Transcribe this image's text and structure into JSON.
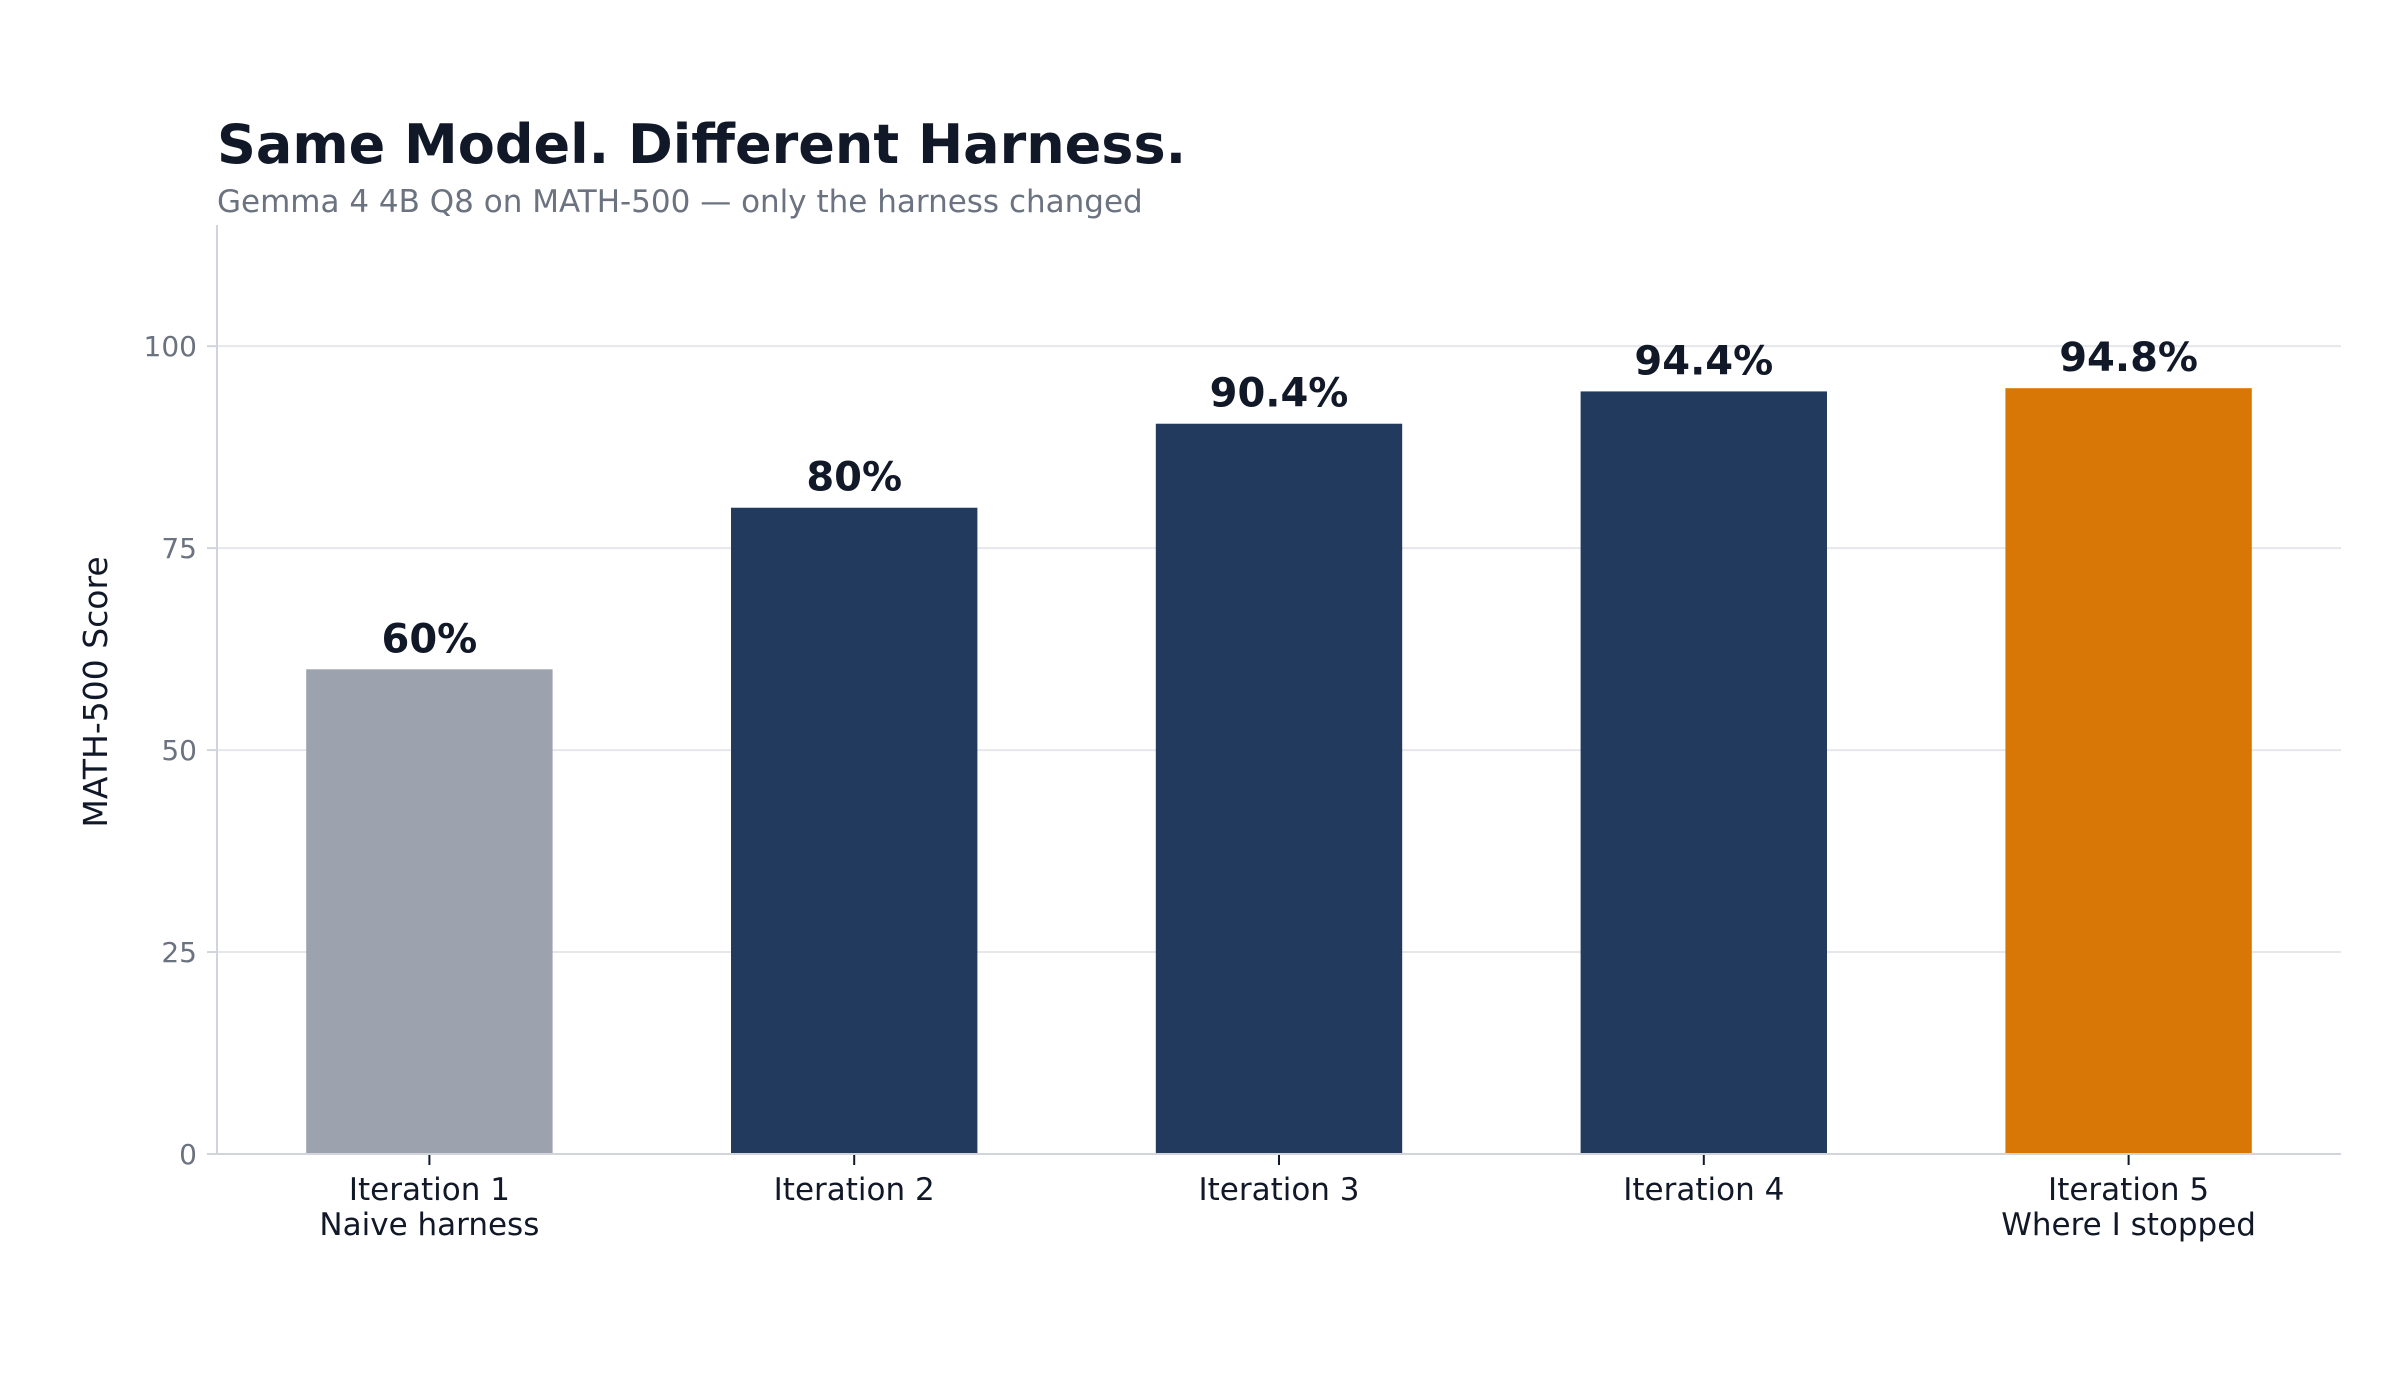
{
  "chart_data": {
    "type": "bar",
    "title": "Same Model. Different Harness.",
    "subtitle": "Gemma 4 4B Q8 on MATH-500 — only the harness changed",
    "xlabel": "",
    "ylabel": "MATH-500 Score",
    "ylim": [
      0,
      115
    ],
    "yticks": [
      0,
      25,
      50,
      75,
      100
    ],
    "grid": true,
    "categories": [
      [
        "Iteration 1",
        "Naive harness"
      ],
      [
        "Iteration 2"
      ],
      [
        "Iteration 3"
      ],
      [
        "Iteration 4"
      ],
      [
        "Iteration 5",
        "Where I stopped"
      ]
    ],
    "values": [
      60,
      80,
      90.4,
      94.4,
      94.8
    ],
    "data_labels": [
      "60%",
      "80%",
      "90.4%",
      "94.4%",
      "94.8%"
    ],
    "colors": [
      "#9ca3af",
      "#213a5e",
      "#213a5e",
      "#213a5e",
      "#d97706"
    ]
  }
}
